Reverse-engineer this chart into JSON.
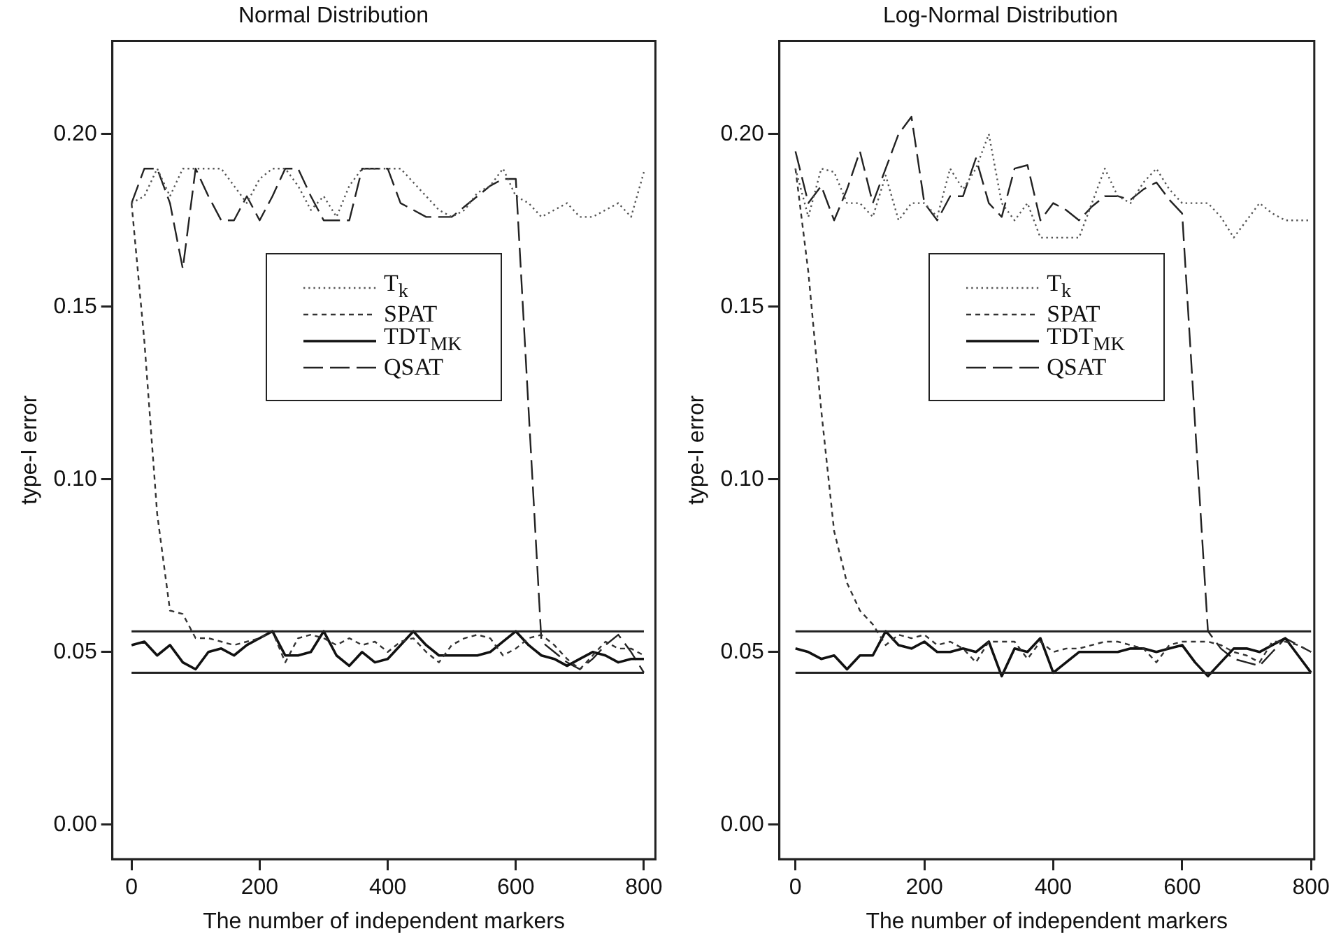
{
  "chart_data": [
    {
      "type": "line",
      "title": "Normal Distribution",
      "xlabel": "The number of independent markers",
      "ylabel": "type-I error",
      "legend": "center",
      "marker": "none",
      "x": [
        0,
        20,
        40,
        60,
        80,
        100,
        120,
        140,
        160,
        180,
        200,
        220,
        240,
        260,
        280,
        300,
        320,
        340,
        360,
        380,
        400,
        420,
        440,
        460,
        480,
        500,
        520,
        540,
        560,
        580,
        600,
        620,
        640,
        660,
        680,
        700,
        720,
        740,
        760,
        780,
        800
      ],
      "xlim": [
        -30,
        818
      ],
      "xticks": [
        0,
        200,
        400,
        600,
        800
      ],
      "ylim": [
        -0.01,
        0.227
      ],
      "yticks": [
        {
          "value": 0,
          "label": "0.00"
        },
        {
          "value": 0.05,
          "label": "0.05"
        },
        {
          "value": 0.1,
          "label": "0.10"
        },
        {
          "value": 0.15,
          "label": "0.15"
        },
        {
          "value": 0.2,
          "label": "0.20"
        }
      ],
      "series": [
        {
          "name": "T$_{k}$",
          "color": "#555555",
          "line_style": "dotted",
          "values": [
            0.18,
            0.182,
            0.19,
            0.182,
            0.19,
            0.19,
            0.19,
            0.19,
            0.185,
            0.18,
            0.187,
            0.19,
            0.19,
            0.185,
            0.178,
            0.182,
            0.176,
            0.185,
            0.19,
            0.19,
            0.19,
            0.19,
            0.186,
            0.182,
            0.178,
            0.176,
            0.178,
            0.183,
            0.185,
            0.19,
            0.182,
            0.18,
            0.176,
            0.178,
            0.18,
            0.176,
            0.176,
            0.178,
            0.18,
            0.176,
            0.189
          ]
        },
        {
          "name": "SPAT",
          "color": "#333333",
          "line_style": "dashed",
          "values": [
            0.18,
            0.14,
            0.09,
            0.062,
            0.061,
            0.054,
            0.054,
            0.053,
            0.052,
            0.053,
            0.054,
            0.056,
            0.047,
            0.054,
            0.055,
            0.054,
            0.052,
            0.054,
            0.052,
            0.053,
            0.05,
            0.053,
            0.054,
            0.05,
            0.047,
            0.052,
            0.054,
            0.055,
            0.054,
            0.049,
            0.051,
            0.054,
            0.055,
            0.052,
            0.048,
            0.045,
            0.049,
            0.053,
            0.051,
            0.051,
            0.049
          ]
        },
        {
          "name": "TDT$_{MK}$",
          "color": "#111111",
          "line_style": "solid",
          "values": [
            0.052,
            0.053,
            0.049,
            0.052,
            0.047,
            0.045,
            0.05,
            0.051,
            0.049,
            0.052,
            0.054,
            0.056,
            0.049,
            0.049,
            0.05,
            0.056,
            0.049,
            0.046,
            0.05,
            0.047,
            0.048,
            0.052,
            0.056,
            0.052,
            0.049,
            0.049,
            0.049,
            0.049,
            0.05,
            0.053,
            0.056,
            0.052,
            0.049,
            0.048,
            0.046,
            0.048,
            0.05,
            0.049,
            0.047,
            0.048,
            0.048
          ]
        },
        {
          "name": "QSAT",
          "color": "#222222",
          "line_style": "dashed",
          "values": [
            0.18,
            0.19,
            0.19,
            0.18,
            0.161,
            0.19,
            0.182,
            0.175,
            0.175,
            0.182,
            0.175,
            0.182,
            0.19,
            0.19,
            0.182,
            0.175,
            0.175,
            0.175,
            0.19,
            0.19,
            0.19,
            0.18,
            0.178,
            0.176,
            0.176,
            0.176,
            0.179,
            0.182,
            0.185,
            0.187,
            0.187,
            0.12,
            0.053,
            0.05,
            0.047,
            0.045,
            0.048,
            0.052,
            0.055,
            0.05,
            0.044
          ]
        }
      ],
      "ref_lines": [
        {
          "axis": "y",
          "value": 0.056,
          "color": "#222222"
        },
        {
          "axis": "y",
          "value": 0.044,
          "color": "#222222"
        }
      ]
    },
    {
      "type": "line",
      "title": "Log-Normal Distribution",
      "xlabel": "The number of independent markers",
      "ylabel": "type-I error",
      "legend": "center",
      "marker": "none",
      "x": [
        0,
        20,
        40,
        60,
        80,
        100,
        120,
        140,
        160,
        180,
        200,
        220,
        240,
        260,
        280,
        300,
        320,
        340,
        360,
        380,
        400,
        420,
        440,
        460,
        480,
        500,
        520,
        540,
        560,
        580,
        600,
        620,
        640,
        660,
        680,
        700,
        720,
        740,
        760,
        780,
        800
      ],
      "xlim": [
        -25,
        805
      ],
      "xticks": [
        0,
        200,
        400,
        600,
        800
      ],
      "ylim": [
        -0.01,
        0.227
      ],
      "yticks": [
        {
          "value": 0,
          "label": "0.00"
        },
        {
          "value": 0.05,
          "label": "0.05"
        },
        {
          "value": 0.1,
          "label": "0.10"
        },
        {
          "value": 0.15,
          "label": "0.15"
        },
        {
          "value": 0.2,
          "label": "0.20"
        }
      ],
      "series": [
        {
          "name": "T$_{k}$",
          "color": "#555555",
          "line_style": "dotted",
          "values": [
            0.19,
            0.176,
            0.19,
            0.189,
            0.18,
            0.18,
            0.176,
            0.188,
            0.175,
            0.18,
            0.18,
            0.176,
            0.19,
            0.184,
            0.19,
            0.2,
            0.18,
            0.175,
            0.18,
            0.17,
            0.17,
            0.17,
            0.17,
            0.18,
            0.19,
            0.182,
            0.18,
            0.186,
            0.19,
            0.184,
            0.18,
            0.18,
            0.18,
            0.176,
            0.17,
            0.175,
            0.18,
            0.177,
            0.175,
            0.175,
            0.175
          ]
        },
        {
          "name": "SPAT",
          "color": "#333333",
          "line_style": "dashed",
          "values": [
            0.19,
            0.16,
            0.12,
            0.085,
            0.07,
            0.062,
            0.058,
            0.052,
            0.055,
            0.054,
            0.055,
            0.052,
            0.053,
            0.051,
            0.047,
            0.053,
            0.053,
            0.053,
            0.048,
            0.053,
            0.05,
            0.051,
            0.051,
            0.052,
            0.053,
            0.053,
            0.052,
            0.051,
            0.047,
            0.052,
            0.053,
            0.053,
            0.053,
            0.052,
            0.05,
            0.049,
            0.047,
            0.053,
            0.053,
            0.052,
            0.05
          ]
        },
        {
          "name": "TDT$_{MK}$",
          "color": "#111111",
          "line_style": "solid",
          "values": [
            0.051,
            0.05,
            0.048,
            0.049,
            0.045,
            0.049,
            0.049,
            0.056,
            0.052,
            0.051,
            0.053,
            0.05,
            0.05,
            0.051,
            0.05,
            0.053,
            0.043,
            0.051,
            0.05,
            0.054,
            0.044,
            0.047,
            0.05,
            0.05,
            0.05,
            0.05,
            0.051,
            0.051,
            0.05,
            0.051,
            0.052,
            0.047,
            0.043,
            0.047,
            0.051,
            0.051,
            0.05,
            0.052,
            0.054,
            0.049,
            0.044
          ]
        },
        {
          "name": "QSAT",
          "color": "#222222",
          "line_style": "dashed",
          "values": [
            0.195,
            0.18,
            0.185,
            0.175,
            0.184,
            0.195,
            0.18,
            0.19,
            0.2,
            0.205,
            0.18,
            0.175,
            0.182,
            0.182,
            0.193,
            0.18,
            0.176,
            0.19,
            0.191,
            0.175,
            0.18,
            0.178,
            0.175,
            0.179,
            0.182,
            0.182,
            0.181,
            0.184,
            0.186,
            0.181,
            0.177,
            0.116,
            0.056,
            0.051,
            0.048,
            0.047,
            0.046,
            0.05,
            0.054,
            0.052,
            0.05
          ]
        }
      ],
      "ref_lines": [
        {
          "axis": "y",
          "value": 0.056,
          "color": "#222222"
        },
        {
          "axis": "y",
          "value": 0.044,
          "color": "#222222"
        }
      ]
    }
  ]
}
